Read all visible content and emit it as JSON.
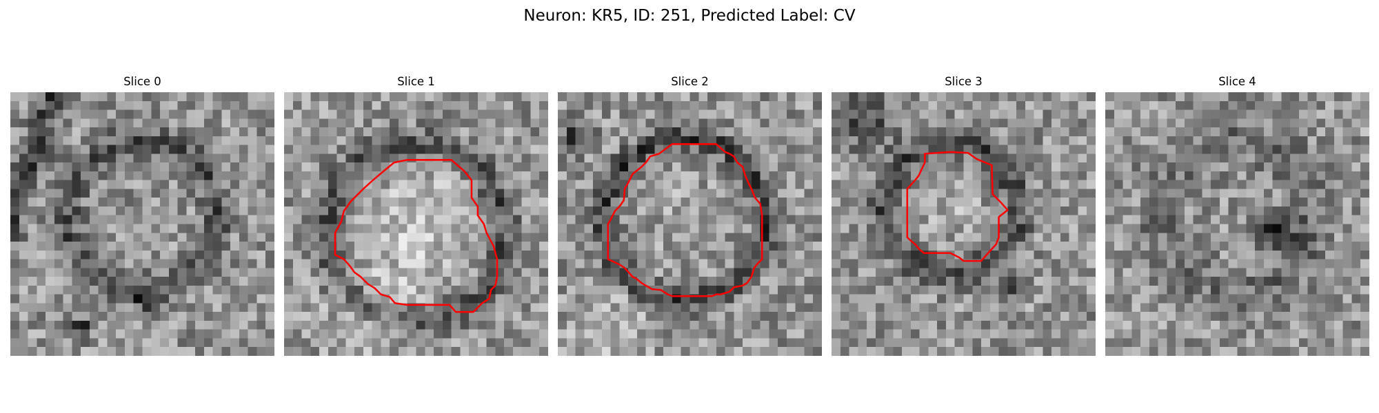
{
  "figure": {
    "title": "Neuron: KR5, ID: 251, Predicted Label: CV",
    "contour_color": "#ff0000",
    "colormap": "grayscale"
  },
  "panels": [
    {
      "title": "Slice 0",
      "has_contour": false
    },
    {
      "title": "Slice 1",
      "has_contour": true
    },
    {
      "title": "Slice 2",
      "has_contour": true
    },
    {
      "title": "Slice 3",
      "has_contour": true
    },
    {
      "title": "Slice 4",
      "has_contour": false
    }
  ]
}
